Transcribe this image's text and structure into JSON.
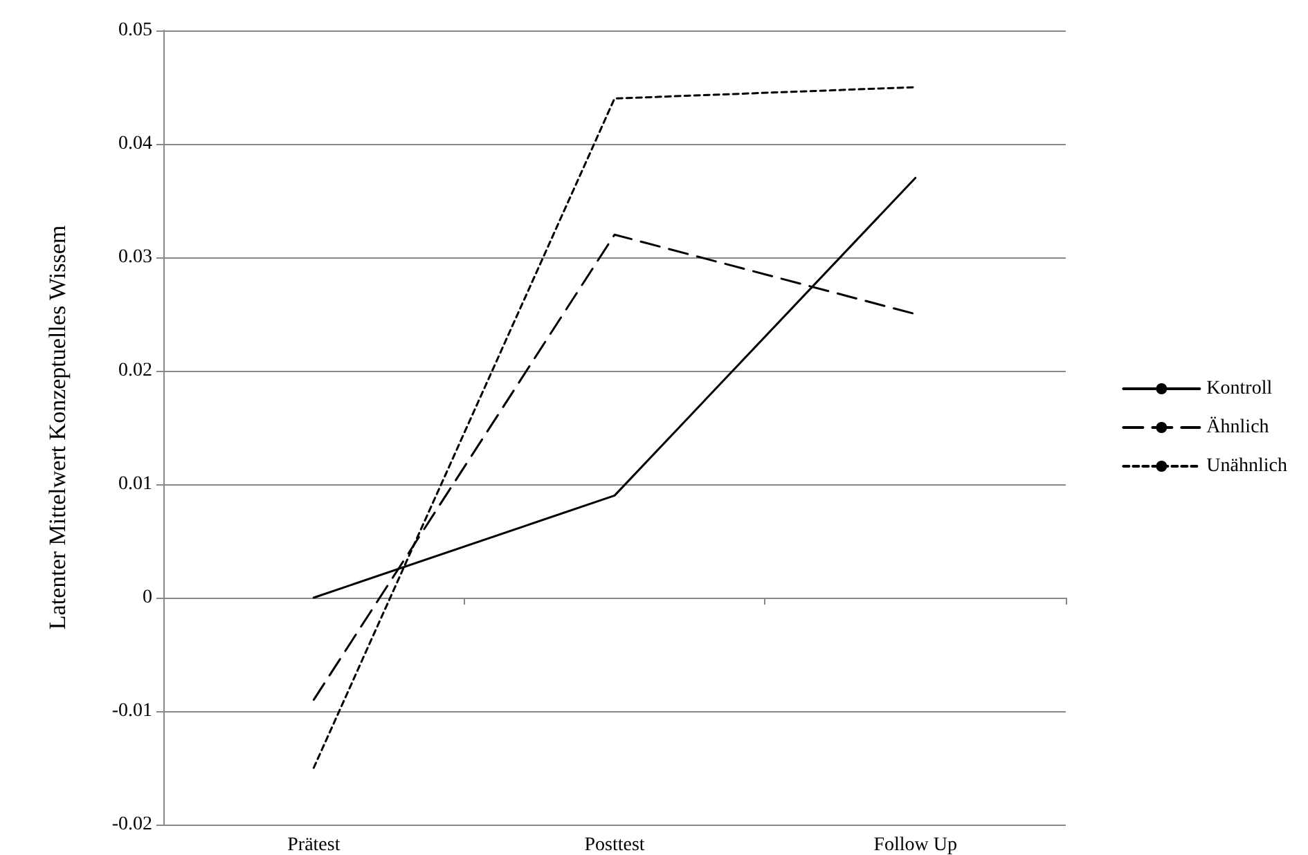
{
  "chart_data": {
    "type": "line",
    "ylabel": "Latenter Mittelwert Konzeptuelles Wissem",
    "categories": [
      "Prätest",
      "Posttest",
      "Follow Up"
    ],
    "series": [
      {
        "name": "Kontroll",
        "color": "#000000",
        "line_style": "solid",
        "values": [
          0,
          0.009,
          0.037
        ]
      },
      {
        "name": "Ähnlich",
        "color": "#000000",
        "line_style": "dashed",
        "values": [
          -0.009,
          0.032,
          0.025
        ]
      },
      {
        "name": "Unähnlich",
        "color": "#000000",
        "line_style": "dotted",
        "values": [
          -0.015,
          0.044,
          0.045
        ]
      }
    ],
    "ylim": [
      -0.02,
      0.05
    ],
    "yticks": [
      -0.02,
      -0.01,
      0,
      0.01,
      0.02,
      0.03,
      0.04,
      0.05
    ],
    "grid": "y",
    "legend": "right",
    "marker": "none"
  }
}
